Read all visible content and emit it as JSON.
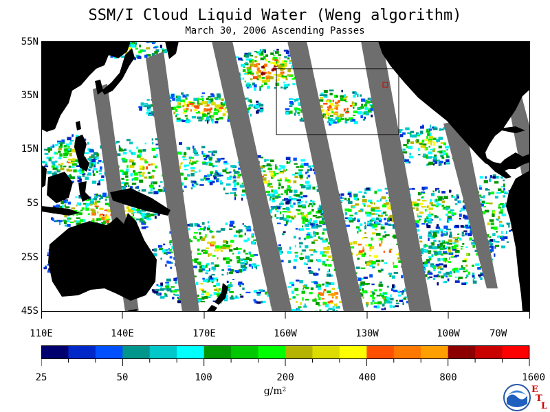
{
  "header": {
    "title": "SSM/I Cloud Liquid Water (Weng algorithm)",
    "subtitle": "March 30, 2006  Ascending Passes"
  },
  "map": {
    "lat_labels": [
      "55N",
      "35N",
      "15N",
      "5S",
      "25S",
      "45S"
    ],
    "lon_labels": [
      "110E",
      "140E",
      "170E",
      "160W",
      "130W",
      "100W",
      "70W"
    ],
    "land_color": "#000000",
    "no_data_color": "#6e6e6e",
    "ocean_clear_color": "#ffffff"
  },
  "colorbar": {
    "tick_labels": [
      "25",
      "50",
      "100",
      "200",
      "400",
      "800",
      "1600"
    ],
    "units": "g/m²",
    "colors": [
      "#00006e",
      "#0028c8",
      "#0050ff",
      "#00968c",
      "#00c8c8",
      "#00ffff",
      "#009600",
      "#00c800",
      "#00ff00",
      "#b4b400",
      "#dcdc00",
      "#ffff00",
      "#ff5000",
      "#ff7800",
      "#ffa000",
      "#8c0000",
      "#c80000",
      "#ff0000"
    ]
  },
  "logo": {
    "name": "NOAA",
    "corner_letters": [
      "E",
      "T",
      "L"
    ]
  }
}
